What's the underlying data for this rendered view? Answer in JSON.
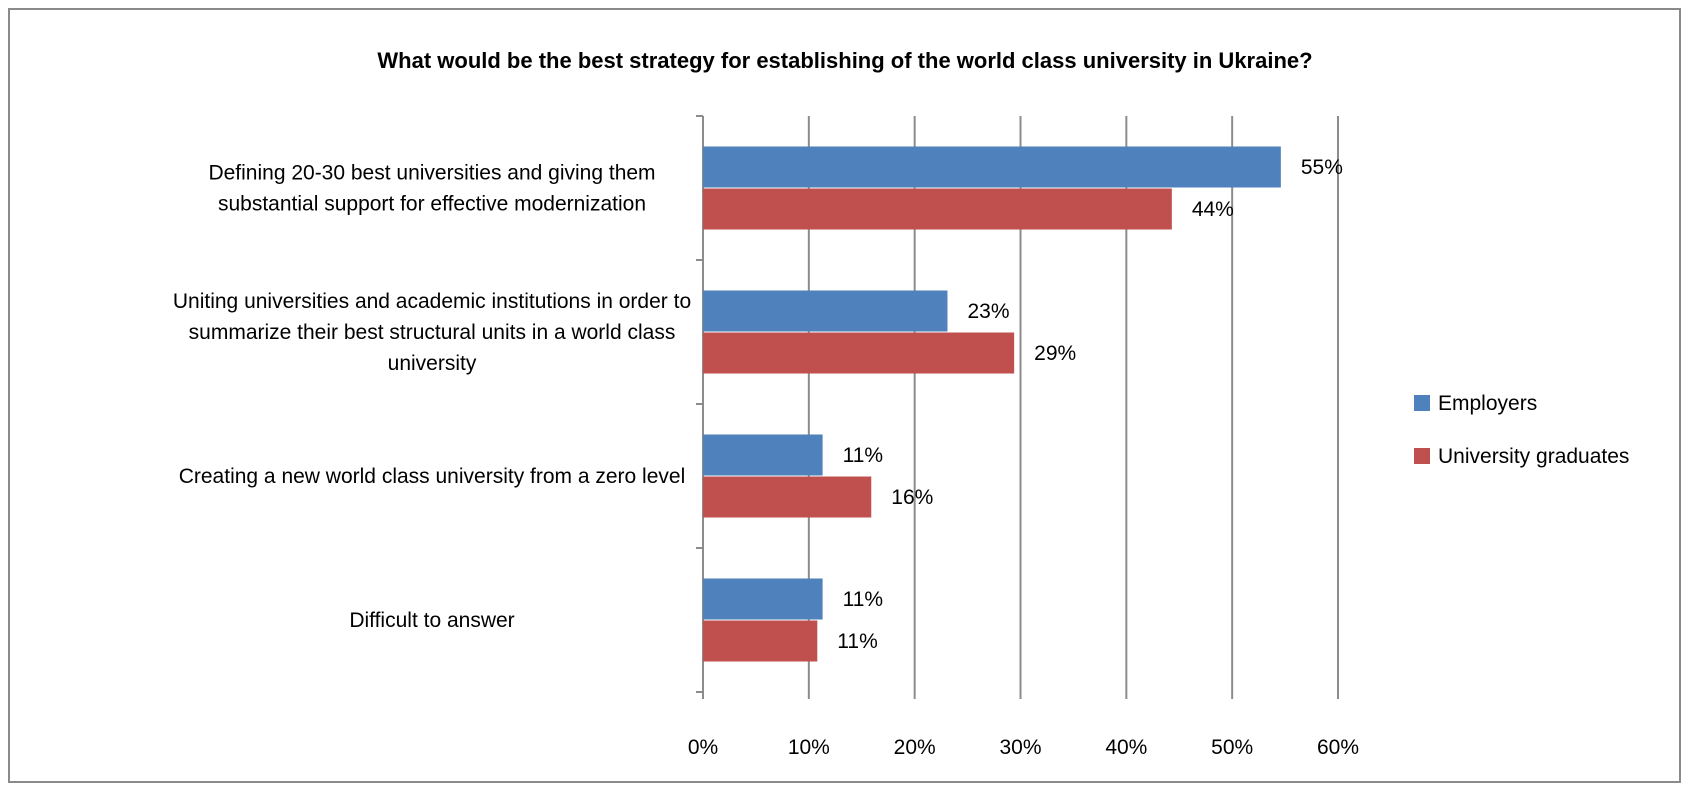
{
  "chart_data": {
    "type": "bar",
    "orientation": "horizontal",
    "title": "What would be the best strategy for establishing of the world class university in Ukraine?",
    "xlabel": "",
    "ylabel": "",
    "categories": [
      "Defining 20-30 best universities and giving them substantial support for effective modernization",
      "Uniting universities and academic institutions in order to summarize their best structural units in a world class university",
      "Creating a new world class university from a zero level",
      "Difficult to answer"
    ],
    "category_label_lines": [
      [
        "Defining 20-30 best universities and giving them",
        "substantial support for effective modernization"
      ],
      [
        "Uniting universities and academic institutions in order to",
        "summarize their best structural units in a world class",
        "university"
      ],
      [
        "Creating a new world class university from a zero level"
      ],
      [
        "Difficult to answer"
      ]
    ],
    "series": [
      {
        "name": "Employers",
        "color": "#4f81bd",
        "values": [
          54.6,
          23.1,
          11.3,
          11.3
        ],
        "labels": [
          "55%",
          "23%",
          "11%",
          "11%"
        ]
      },
      {
        "name": "University graduates",
        "color": "#c0504d",
        "values": [
          44.3,
          29.4,
          15.9,
          10.8
        ],
        "labels": [
          "44%",
          "29%",
          "16%",
          "11%"
        ]
      }
    ],
    "xlim": [
      0,
      60
    ],
    "xticks": [
      0,
      10,
      20,
      30,
      40,
      50,
      60
    ],
    "xtick_labels": [
      "0%",
      "10%",
      "20%",
      "30%",
      "40%",
      "50%",
      "60%"
    ],
    "grid": "vertical",
    "legend_position": "right"
  }
}
